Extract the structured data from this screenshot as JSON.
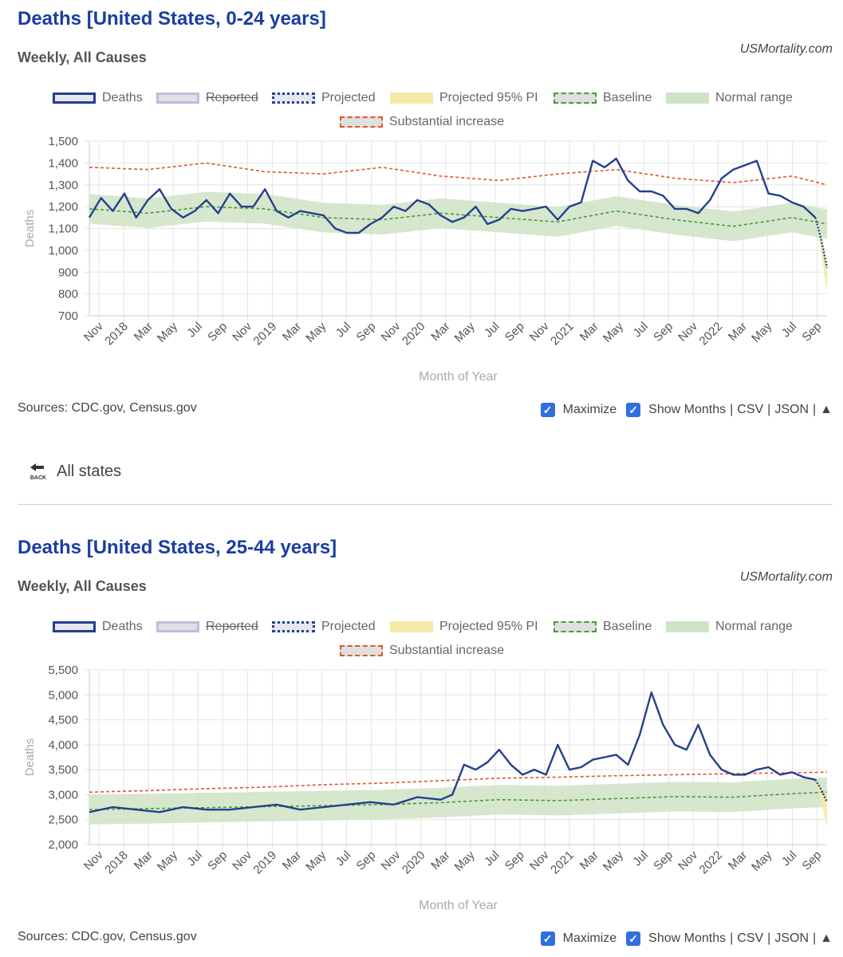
{
  "charts": [
    {
      "title": "Deaths [United States, 0-24 years]",
      "subtitle": "Weekly, All Causes",
      "brand": "USMortality.com",
      "sources": "Sources: CDC.gov, Census.gov"
    },
    {
      "title": "Deaths [United States, 25-44 years]",
      "subtitle": "Weekly, All Causes",
      "brand": "USMortality.com",
      "sources": "Sources: CDC.gov, Census.gov"
    }
  ],
  "legend": {
    "deaths": "Deaths",
    "reported": "Reported",
    "projected": "Projected",
    "projected_pi": "Projected 95% PI",
    "baseline": "Baseline",
    "normal_range": "Normal range",
    "substantial_increase": "Substantial increase"
  },
  "controls": {
    "maximize": "Maximize",
    "show_months": "Show Months",
    "csv": "CSV",
    "json": "JSON",
    "sep": "|",
    "up_arrow": "▲"
  },
  "back": {
    "label": "All states",
    "icon_text": "BACK"
  },
  "colors": {
    "deaths": "#24408e",
    "baseline": "#4a9a3a",
    "normal_range": "#cfe3c6",
    "substantial": "#e0552c",
    "projected_pi": "#f2eaa8",
    "title": "#1a3ea1",
    "checkbox": "#2f6fe0"
  },
  "chart_data": [
    {
      "type": "line",
      "title": "Deaths [United States, 0-24 years]",
      "xlabel": "Month of Year",
      "ylabel": "Deaths",
      "ylim": [
        700,
        1500
      ],
      "yticks": [
        "1,500",
        "1,400",
        "1,300",
        "1,200",
        "1,100",
        "1,000",
        "900",
        "800",
        "700"
      ],
      "xticks": [
        "Nov",
        "2018",
        "Mar",
        "May",
        "Jul",
        "Sep",
        "Nov",
        "2019",
        "Mar",
        "May",
        "Jul",
        "Sep",
        "Nov",
        "2020",
        "Mar",
        "May",
        "Jul",
        "Sep",
        "Nov",
        "2021",
        "Mar",
        "May",
        "Jul",
        "Sep",
        "Nov",
        "2022",
        "Mar",
        "May",
        "Jul",
        "Sep"
      ],
      "grid": true,
      "legend_position": "top",
      "series": [
        {
          "name": "Deaths",
          "x": [
            0,
            4,
            8,
            12,
            16,
            20,
            24,
            28,
            32,
            36,
            40,
            44,
            48,
            52,
            56,
            60,
            64,
            68,
            72,
            76,
            80,
            84,
            88,
            92,
            96,
            100,
            104,
            108,
            112,
            116,
            120,
            124,
            128,
            132,
            136,
            140,
            144,
            148,
            152,
            156,
            160,
            164,
            168,
            172,
            176,
            180,
            184,
            188,
            192,
            196,
            200,
            204,
            208,
            212,
            216,
            220,
            224,
            228,
            232,
            236,
            240,
            244,
            248
          ],
          "values": [
            1150,
            1240,
            1180,
            1260,
            1150,
            1230,
            1280,
            1190,
            1150,
            1180,
            1230,
            1170,
            1260,
            1200,
            1200,
            1280,
            1180,
            1150,
            1180,
            1170,
            1160,
            1100,
            1080,
            1080,
            1120,
            1150,
            1200,
            1180,
            1230,
            1210,
            1160,
            1130,
            1150,
            1200,
            1120,
            1140,
            1190,
            1180,
            1190,
            1200,
            1140,
            1200,
            1220,
            1410,
            1380,
            1420,
            1320,
            1270,
            1270,
            1250,
            1190,
            1190,
            1170,
            1230,
            1330,
            1370,
            1390,
            1410,
            1260,
            1250,
            1220,
            1200,
            1150
          ]
        },
        {
          "name": "Projected",
          "x": [
            248,
            250,
            252
          ],
          "values": [
            1150,
            1050,
            920
          ]
        },
        {
          "name": "Baseline",
          "x": [
            0,
            20,
            40,
            60,
            80,
            100,
            120,
            140,
            160,
            180,
            200,
            220,
            240,
            252
          ],
          "values": [
            1190,
            1170,
            1200,
            1190,
            1150,
            1140,
            1170,
            1150,
            1130,
            1180,
            1140,
            1110,
            1150,
            1120
          ]
        },
        {
          "name": "Substantial increase",
          "x": [
            0,
            20,
            40,
            60,
            80,
            100,
            120,
            140,
            160,
            180,
            200,
            220,
            240,
            252
          ],
          "values": [
            1380,
            1370,
            1400,
            1360,
            1350,
            1380,
            1340,
            1320,
            1350,
            1370,
            1330,
            1310,
            1340,
            1300
          ]
        }
      ]
    },
    {
      "type": "line",
      "title": "Deaths [United States, 25-44 years]",
      "xlabel": "Month of Year",
      "ylabel": "Deaths",
      "ylim": [
        2000,
        5500
      ],
      "yticks": [
        "5,500",
        "5,000",
        "4,500",
        "4,000",
        "3,500",
        "3,000",
        "2,500",
        "2,000"
      ],
      "xticks": [
        "Nov",
        "2018",
        "Mar",
        "May",
        "Jul",
        "Sep",
        "Nov",
        "2019",
        "Mar",
        "May",
        "Jul",
        "Sep",
        "Nov",
        "2020",
        "Mar",
        "May",
        "Jul",
        "Sep",
        "Nov",
        "2021",
        "Mar",
        "May",
        "Jul",
        "Sep",
        "Nov",
        "2022",
        "Mar",
        "May",
        "Jul",
        "Sep"
      ],
      "grid": true,
      "legend_position": "top",
      "series": [
        {
          "name": "Deaths",
          "x": [
            0,
            8,
            16,
            24,
            32,
            40,
            48,
            56,
            64,
            72,
            80,
            88,
            96,
            104,
            112,
            120,
            124,
            128,
            132,
            136,
            140,
            144,
            148,
            152,
            156,
            160,
            164,
            168,
            172,
            176,
            180,
            184,
            188,
            192,
            196,
            200,
            204,
            208,
            212,
            216,
            220,
            224,
            228,
            232,
            236,
            240,
            244,
            248
          ],
          "values": [
            2650,
            2750,
            2700,
            2650,
            2750,
            2700,
            2700,
            2750,
            2800,
            2700,
            2750,
            2800,
            2850,
            2800,
            2950,
            2900,
            3000,
            3600,
            3500,
            3650,
            3900,
            3600,
            3400,
            3500,
            3400,
            4000,
            3500,
            3550,
            3700,
            3750,
            3800,
            3600,
            4200,
            5050,
            4400,
            4000,
            3900,
            4400,
            3800,
            3500,
            3400,
            3400,
            3500,
            3550,
            3400,
            3450,
            3350,
            3300
          ]
        },
        {
          "name": "Projected",
          "x": [
            248,
            250,
            252
          ],
          "values": [
            3300,
            3100,
            2850
          ]
        },
        {
          "name": "Baseline",
          "x": [
            0,
            20,
            40,
            60,
            80,
            100,
            120,
            140,
            160,
            180,
            200,
            220,
            240,
            252
          ],
          "values": [
            2700,
            2720,
            2740,
            2760,
            2780,
            2800,
            2840,
            2900,
            2880,
            2920,
            2960,
            2950,
            3020,
            3050
          ]
        },
        {
          "name": "Substantial increase",
          "x": [
            0,
            20,
            40,
            60,
            80,
            100,
            120,
            140,
            160,
            180,
            200,
            220,
            240,
            252
          ],
          "values": [
            3050,
            3080,
            3120,
            3150,
            3200,
            3230,
            3280,
            3330,
            3350,
            3380,
            3400,
            3420,
            3440,
            3450
          ]
        }
      ]
    }
  ]
}
